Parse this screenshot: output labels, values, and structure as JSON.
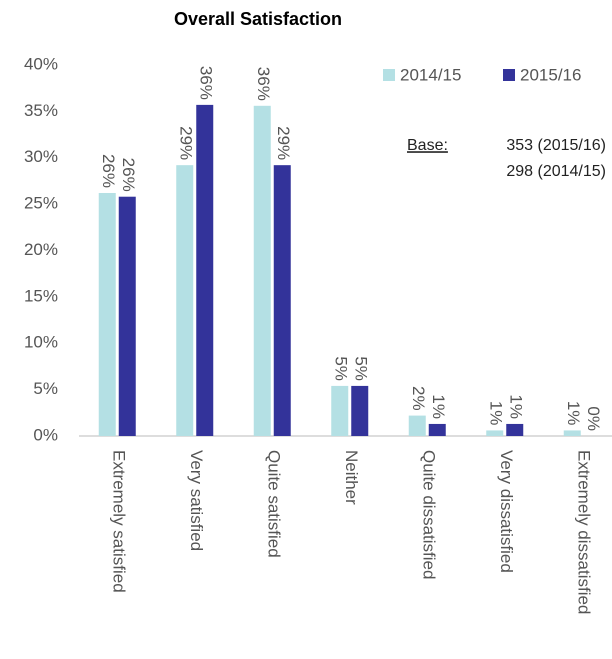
{
  "chart_data": {
    "type": "bar",
    "title": "Overall Satisfaction",
    "categories": [
      "Extremely satisfied",
      "Very satisfied",
      "Quite satisfied",
      "Neither",
      "Quite dissatisfied",
      "Very dissatisfied",
      "Extremely dissatisfied"
    ],
    "series": [
      {
        "name": "2014/15",
        "color": "#b4e0e4",
        "values": [
          26.2,
          29.2,
          35.6,
          5.4,
          2.2,
          0.6,
          0.6
        ],
        "value_labels": [
          "26%",
          "29%",
          "36%",
          "5%",
          "2%",
          "1%",
          "1%"
        ]
      },
      {
        "name": "2015/16",
        "color": "#33339a",
        "values": [
          25.8,
          35.7,
          29.2,
          5.4,
          1.3,
          1.3,
          0
        ],
        "value_labels": [
          "26%",
          "36%",
          "29%",
          "5%",
          "1%",
          "1%",
          "0%"
        ]
      }
    ],
    "ylim": [
      0,
      40
    ],
    "yticks": [
      {
        "value": 0,
        "label": "0%"
      },
      {
        "value": 5,
        "label": "5%"
      },
      {
        "value": 10,
        "label": "10%"
      },
      {
        "value": 15,
        "label": "15%"
      },
      {
        "value": 20,
        "label": "20%"
      },
      {
        "value": 25,
        "label": "25%"
      },
      {
        "value": 30,
        "label": "30%"
      },
      {
        "value": 35,
        "label": "35%"
      },
      {
        "value": 40,
        "label": "40%"
      }
    ],
    "grid": false,
    "legend": "top-right",
    "annotations": {
      "base_label": "Base:",
      "base_1": "353 (2015/16)",
      "base_2": "298 (2014/15)"
    }
  }
}
